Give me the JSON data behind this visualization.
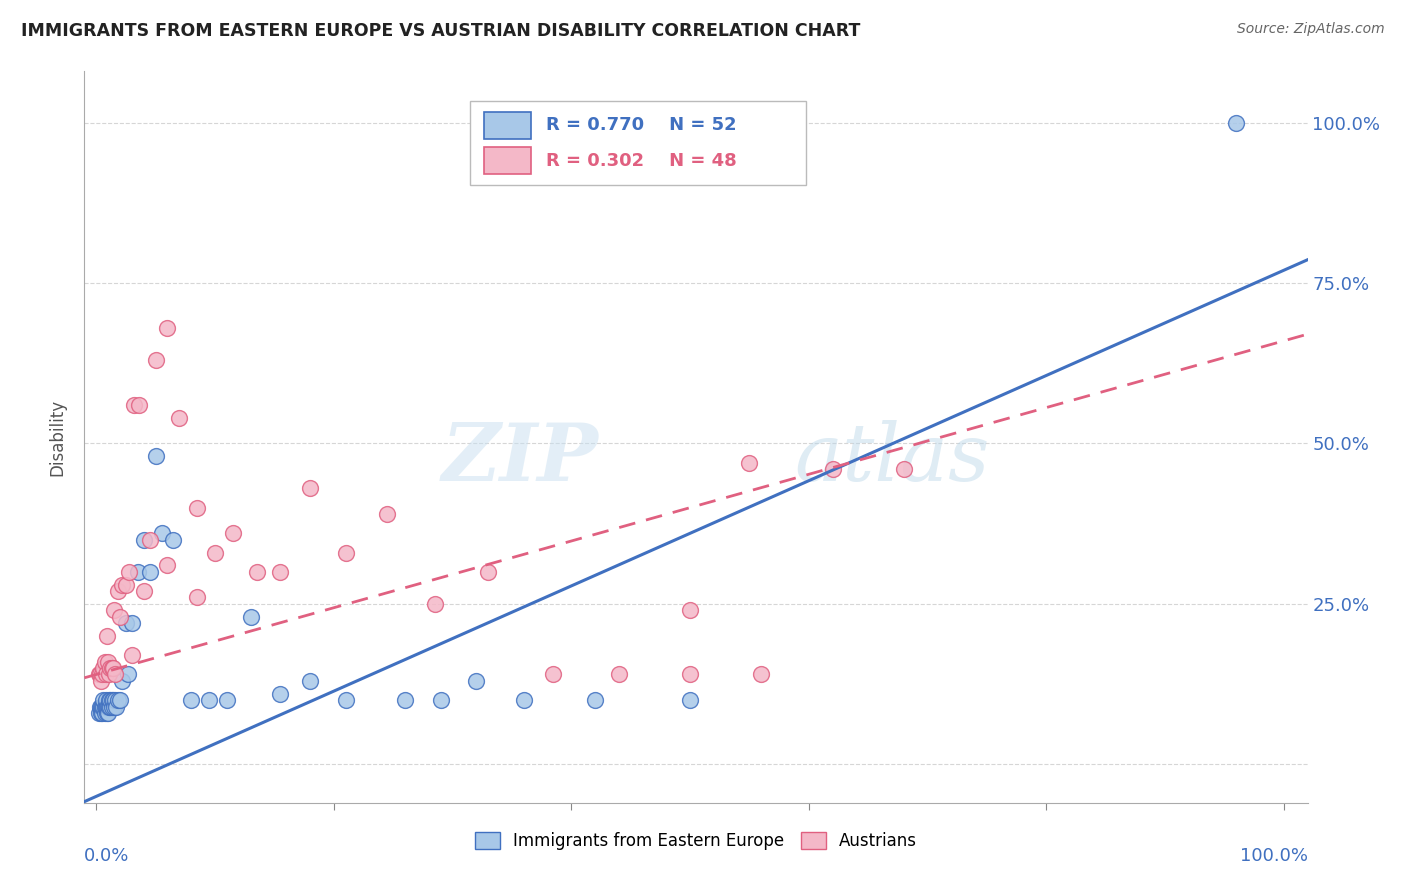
{
  "title": "IMMIGRANTS FROM EASTERN EUROPE VS AUSTRIAN DISABILITY CORRELATION CHART",
  "source": "Source: ZipAtlas.com",
  "ylabel": "Disability",
  "blue_R": "0.770",
  "blue_N": "52",
  "pink_R": "0.302",
  "pink_N": "48",
  "blue_color": "#a8c8e8",
  "pink_color": "#f4b8c8",
  "blue_line_color": "#4070c0",
  "pink_line_color": "#e06080",
  "watermark_zip": "ZIP",
  "watermark_atlas": "atlas",
  "blue_scatter_x": [
    0.002,
    0.003,
    0.004,
    0.004,
    0.005,
    0.005,
    0.006,
    0.006,
    0.007,
    0.007,
    0.008,
    0.008,
    0.009,
    0.009,
    0.01,
    0.01,
    0.011,
    0.011,
    0.012,
    0.012,
    0.013,
    0.013,
    0.014,
    0.015,
    0.016,
    0.017,
    0.018,
    0.02,
    0.022,
    0.025,
    0.027,
    0.03,
    0.035,
    0.04,
    0.045,
    0.05,
    0.055,
    0.065,
    0.08,
    0.095,
    0.11,
    0.13,
    0.155,
    0.18,
    0.21,
    0.26,
    0.29,
    0.32,
    0.36,
    0.42,
    0.5,
    0.96
  ],
  "blue_scatter_y": [
    0.08,
    0.09,
    0.08,
    0.09,
    0.08,
    0.09,
    0.09,
    0.1,
    0.08,
    0.09,
    0.09,
    0.1,
    0.08,
    0.09,
    0.09,
    0.08,
    0.09,
    0.1,
    0.09,
    0.1,
    0.09,
    0.1,
    0.1,
    0.09,
    0.1,
    0.09,
    0.1,
    0.1,
    0.13,
    0.22,
    0.14,
    0.22,
    0.3,
    0.35,
    0.3,
    0.48,
    0.36,
    0.35,
    0.1,
    0.1,
    0.1,
    0.23,
    0.11,
    0.13,
    0.1,
    0.1,
    0.1,
    0.13,
    0.1,
    0.1,
    0.1,
    1.0
  ],
  "pink_scatter_x": [
    0.002,
    0.003,
    0.004,
    0.005,
    0.006,
    0.007,
    0.008,
    0.009,
    0.01,
    0.011,
    0.012,
    0.013,
    0.014,
    0.015,
    0.016,
    0.018,
    0.02,
    0.022,
    0.025,
    0.028,
    0.032,
    0.036,
    0.04,
    0.045,
    0.05,
    0.06,
    0.07,
    0.085,
    0.1,
    0.115,
    0.135,
    0.155,
    0.18,
    0.21,
    0.245,
    0.285,
    0.33,
    0.385,
    0.44,
    0.5,
    0.56,
    0.62,
    0.68,
    0.55,
    0.085,
    0.03,
    0.06,
    0.5
  ],
  "pink_scatter_y": [
    0.14,
    0.14,
    0.13,
    0.14,
    0.15,
    0.16,
    0.14,
    0.2,
    0.16,
    0.14,
    0.15,
    0.15,
    0.15,
    0.24,
    0.14,
    0.27,
    0.23,
    0.28,
    0.28,
    0.3,
    0.56,
    0.56,
    0.27,
    0.35,
    0.63,
    0.68,
    0.54,
    0.26,
    0.33,
    0.36,
    0.3,
    0.3,
    0.43,
    0.33,
    0.39,
    0.25,
    0.3,
    0.14,
    0.14,
    0.14,
    0.14,
    0.46,
    0.46,
    0.47,
    0.4,
    0.17,
    0.31,
    0.24
  ],
  "blue_line_slope": 0.82,
  "blue_line_intercept": -0.05,
  "pink_line_slope": 0.52,
  "pink_line_intercept": 0.14,
  "xlim": [
    -0.01,
    1.02
  ],
  "ylim": [
    -0.06,
    1.08
  ],
  "ytick_vals": [
    0.0,
    0.25,
    0.5,
    0.75,
    1.0
  ],
  "ytick_labels": [
    "",
    "25.0%",
    "50.0%",
    "75.0%",
    "100.0%"
  ],
  "xtick_vals": [
    0.0,
    0.2,
    0.4,
    0.6,
    0.8,
    1.0
  ]
}
